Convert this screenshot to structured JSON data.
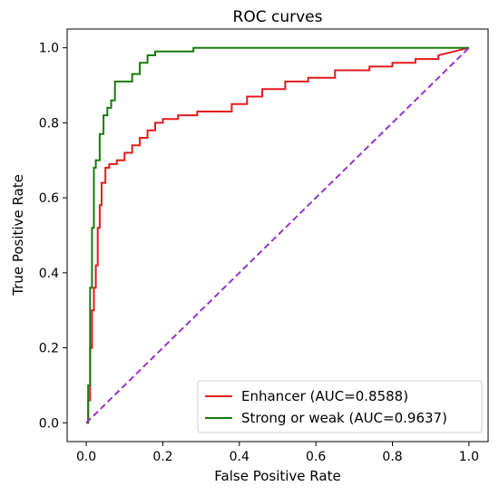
{
  "chart_data": {
    "type": "line",
    "title": "ROC curves",
    "xlabel": "False Positive Rate",
    "ylabel": "True Positive Rate",
    "xlim": [
      -0.05,
      1.05
    ],
    "ylim": [
      -0.05,
      1.05
    ],
    "xticks": [
      "0.0",
      "0.2",
      "0.4",
      "0.6",
      "0.8",
      "1.0"
    ],
    "yticks": [
      "0.0",
      "0.2",
      "0.4",
      "0.6",
      "0.8",
      "1.0"
    ],
    "grid": false,
    "legend_position": "lower-right",
    "series": [
      {
        "name": "Enhancer (AUC=0.8588)",
        "color": "#e41a1c",
        "style": "step",
        "x": [
          0.0,
          0.005,
          0.005,
          0.01,
          0.01,
          0.015,
          0.015,
          0.02,
          0.02,
          0.025,
          0.025,
          0.03,
          0.03,
          0.035,
          0.035,
          0.04,
          0.04,
          0.05,
          0.05,
          0.06,
          0.06,
          0.08,
          0.08,
          0.1,
          0.1,
          0.12,
          0.12,
          0.14,
          0.14,
          0.16,
          0.16,
          0.18,
          0.18,
          0.2,
          0.2,
          0.24,
          0.24,
          0.29,
          0.29,
          0.38,
          0.38,
          0.42,
          0.42,
          0.46,
          0.46,
          0.52,
          0.52,
          0.58,
          0.58,
          0.65,
          0.65,
          0.74,
          0.74,
          0.8,
          0.8,
          0.86,
          0.86,
          0.92,
          0.92,
          1.0
        ],
        "y": [
          0.0,
          0.0,
          0.06,
          0.06,
          0.2,
          0.2,
          0.3,
          0.3,
          0.36,
          0.36,
          0.42,
          0.42,
          0.52,
          0.52,
          0.58,
          0.58,
          0.64,
          0.64,
          0.68,
          0.68,
          0.69,
          0.69,
          0.7,
          0.7,
          0.72,
          0.72,
          0.74,
          0.74,
          0.76,
          0.76,
          0.78,
          0.78,
          0.8,
          0.8,
          0.81,
          0.81,
          0.82,
          0.82,
          0.83,
          0.83,
          0.85,
          0.85,
          0.87,
          0.87,
          0.89,
          0.89,
          0.91,
          0.91,
          0.92,
          0.92,
          0.94,
          0.94,
          0.95,
          0.95,
          0.96,
          0.96,
          0.97,
          0.97,
          0.98,
          1.0
        ]
      },
      {
        "name": "Strong or weak (AUC=0.9637)",
        "color": "#1a7a10",
        "style": "step",
        "x": [
          0.0,
          0.005,
          0.005,
          0.01,
          0.01,
          0.015,
          0.015,
          0.02,
          0.02,
          0.025,
          0.025,
          0.035,
          0.035,
          0.045,
          0.045,
          0.055,
          0.055,
          0.065,
          0.065,
          0.075,
          0.075,
          0.12,
          0.12,
          0.14,
          0.14,
          0.16,
          0.16,
          0.18,
          0.18,
          0.28,
          0.28,
          1.0
        ],
        "y": [
          0.0,
          0.0,
          0.1,
          0.1,
          0.36,
          0.36,
          0.52,
          0.52,
          0.68,
          0.68,
          0.7,
          0.7,
          0.77,
          0.77,
          0.82,
          0.82,
          0.84,
          0.84,
          0.86,
          0.86,
          0.91,
          0.91,
          0.93,
          0.93,
          0.96,
          0.96,
          0.98,
          0.98,
          0.99,
          0.99,
          1.0,
          1.0
        ]
      }
    ],
    "reference_line": {
      "color": "#9932cc",
      "dash": "dashed",
      "x": [
        0,
        1
      ],
      "y": [
        0,
        1
      ]
    }
  }
}
